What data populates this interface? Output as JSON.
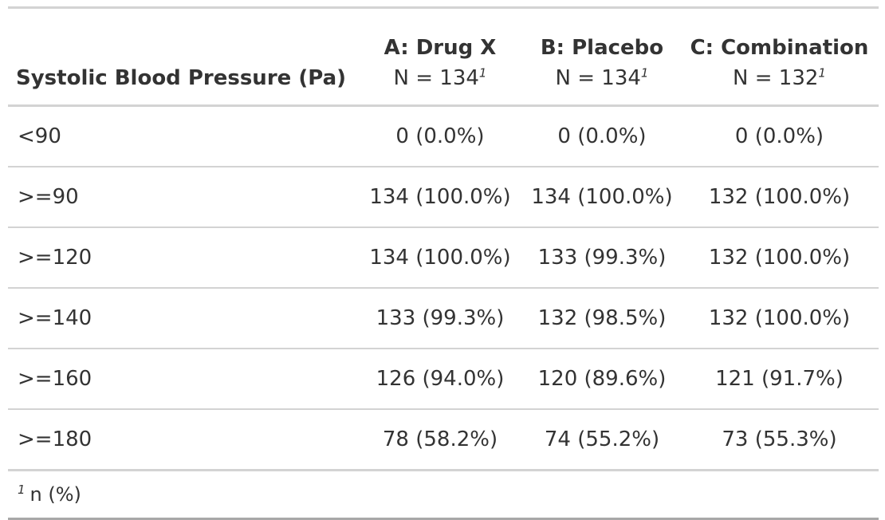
{
  "table": {
    "stub_header": "Systolic Blood Pressure (Pa)",
    "columns": [
      {
        "title": "A: Drug X",
        "n_label": "N = 134",
        "footnote_mark": "1"
      },
      {
        "title": "B: Placebo",
        "n_label": "N = 134",
        "footnote_mark": "1"
      },
      {
        "title": "C: Combination",
        "n_label": "N = 132",
        "footnote_mark": "1"
      }
    ],
    "rows": [
      {
        "label": "<90",
        "values": [
          "0 (0.0%)",
          "0 (0.0%)",
          "0 (0.0%)"
        ]
      },
      {
        "label": ">=90",
        "values": [
          "134 (100.0%)",
          "134 (100.0%)",
          "132 (100.0%)"
        ]
      },
      {
        "label": ">=120",
        "values": [
          "134 (100.0%)",
          "133 (99.3%)",
          "132 (100.0%)"
        ]
      },
      {
        "label": ">=140",
        "values": [
          "133 (99.3%)",
          "132 (98.5%)",
          "132 (100.0%)"
        ]
      },
      {
        "label": ">=160",
        "values": [
          "126 (94.0%)",
          "120 (89.6%)",
          "121 (91.7%)"
        ]
      },
      {
        "label": ">=180",
        "values": [
          "78 (58.2%)",
          "74 (55.2%)",
          "73 (55.3%)"
        ]
      }
    ],
    "footnote": {
      "mark": "1",
      "text": "n (%)"
    }
  }
}
